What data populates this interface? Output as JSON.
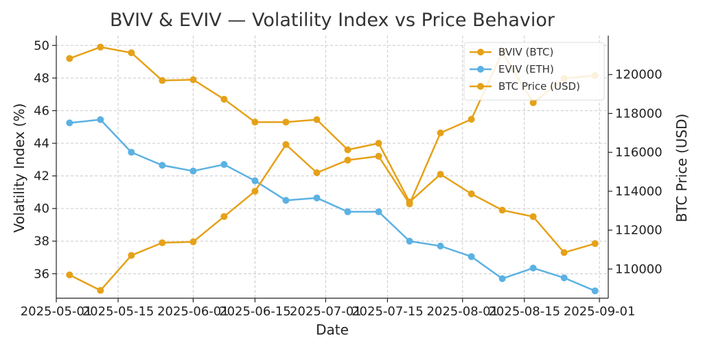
{
  "chart_data": {
    "type": "line",
    "title": "BVIV & EVIV — Volatility Index vs Price Behavior",
    "xlabel": "Date",
    "ylabel": "Volatility Index (%)",
    "y2label": "BTC Price (USD)",
    "grid": true,
    "legend_position": "top-right",
    "x": [
      "2025-05-04",
      "2025-05-11",
      "2025-05-18",
      "2025-05-25",
      "2025-06-01",
      "2025-06-08",
      "2025-06-15",
      "2025-06-22",
      "2025-06-29",
      "2025-07-06",
      "2025-07-13",
      "2025-07-20",
      "2025-07-27",
      "2025-08-03",
      "2025-08-10",
      "2025-08-17",
      "2025-08-24",
      "2025-08-31"
    ],
    "xlim": [
      "2025-05-01",
      "2025-09-03"
    ],
    "x_ticks": [
      "2025-05-01",
      "2025-05-15",
      "2025-06-01",
      "2025-06-15",
      "2025-07-01",
      "2025-07-15",
      "2025-08-01",
      "2025-08-15",
      "2025-09-01"
    ],
    "ylim": [
      34.5,
      50.6
    ],
    "y_ticks": [
      36,
      38,
      40,
      42,
      44,
      46,
      48,
      50
    ],
    "y2lim": [
      108500,
      122000
    ],
    "y2_ticks": [
      110000,
      112000,
      114000,
      116000,
      118000,
      120000
    ],
    "series": [
      {
        "name": "BVIV (BTC)",
        "axis": "left",
        "color": "#e5a118",
        "values": [
          49.2,
          49.9,
          49.55,
          47.85,
          47.9,
          46.7,
          45.3,
          45.3,
          45.45,
          43.6,
          44.0,
          40.4,
          42.1,
          40.9,
          39.9,
          39.5,
          37.3,
          37.85
        ]
      },
      {
        "name": "EVIV (ETH)",
        "axis": "left",
        "color": "#5bb1e3",
        "values": [
          45.25,
          45.45,
          43.45,
          42.65,
          42.3,
          42.7,
          41.7,
          40.5,
          40.65,
          39.8,
          39.8,
          38.0,
          37.7,
          37.05,
          35.7,
          36.35,
          35.75,
          34.95
        ]
      },
      {
        "name": "BTC Price (USD)",
        "axis": "right",
        "color": "#e5a118",
        "values": [
          109700,
          108900,
          110700,
          111350,
          111400,
          112700,
          114000,
          116400,
          114950,
          115600,
          115800,
          113350,
          117000,
          117700,
          121150,
          118550,
          119800,
          119950
        ]
      }
    ]
  }
}
